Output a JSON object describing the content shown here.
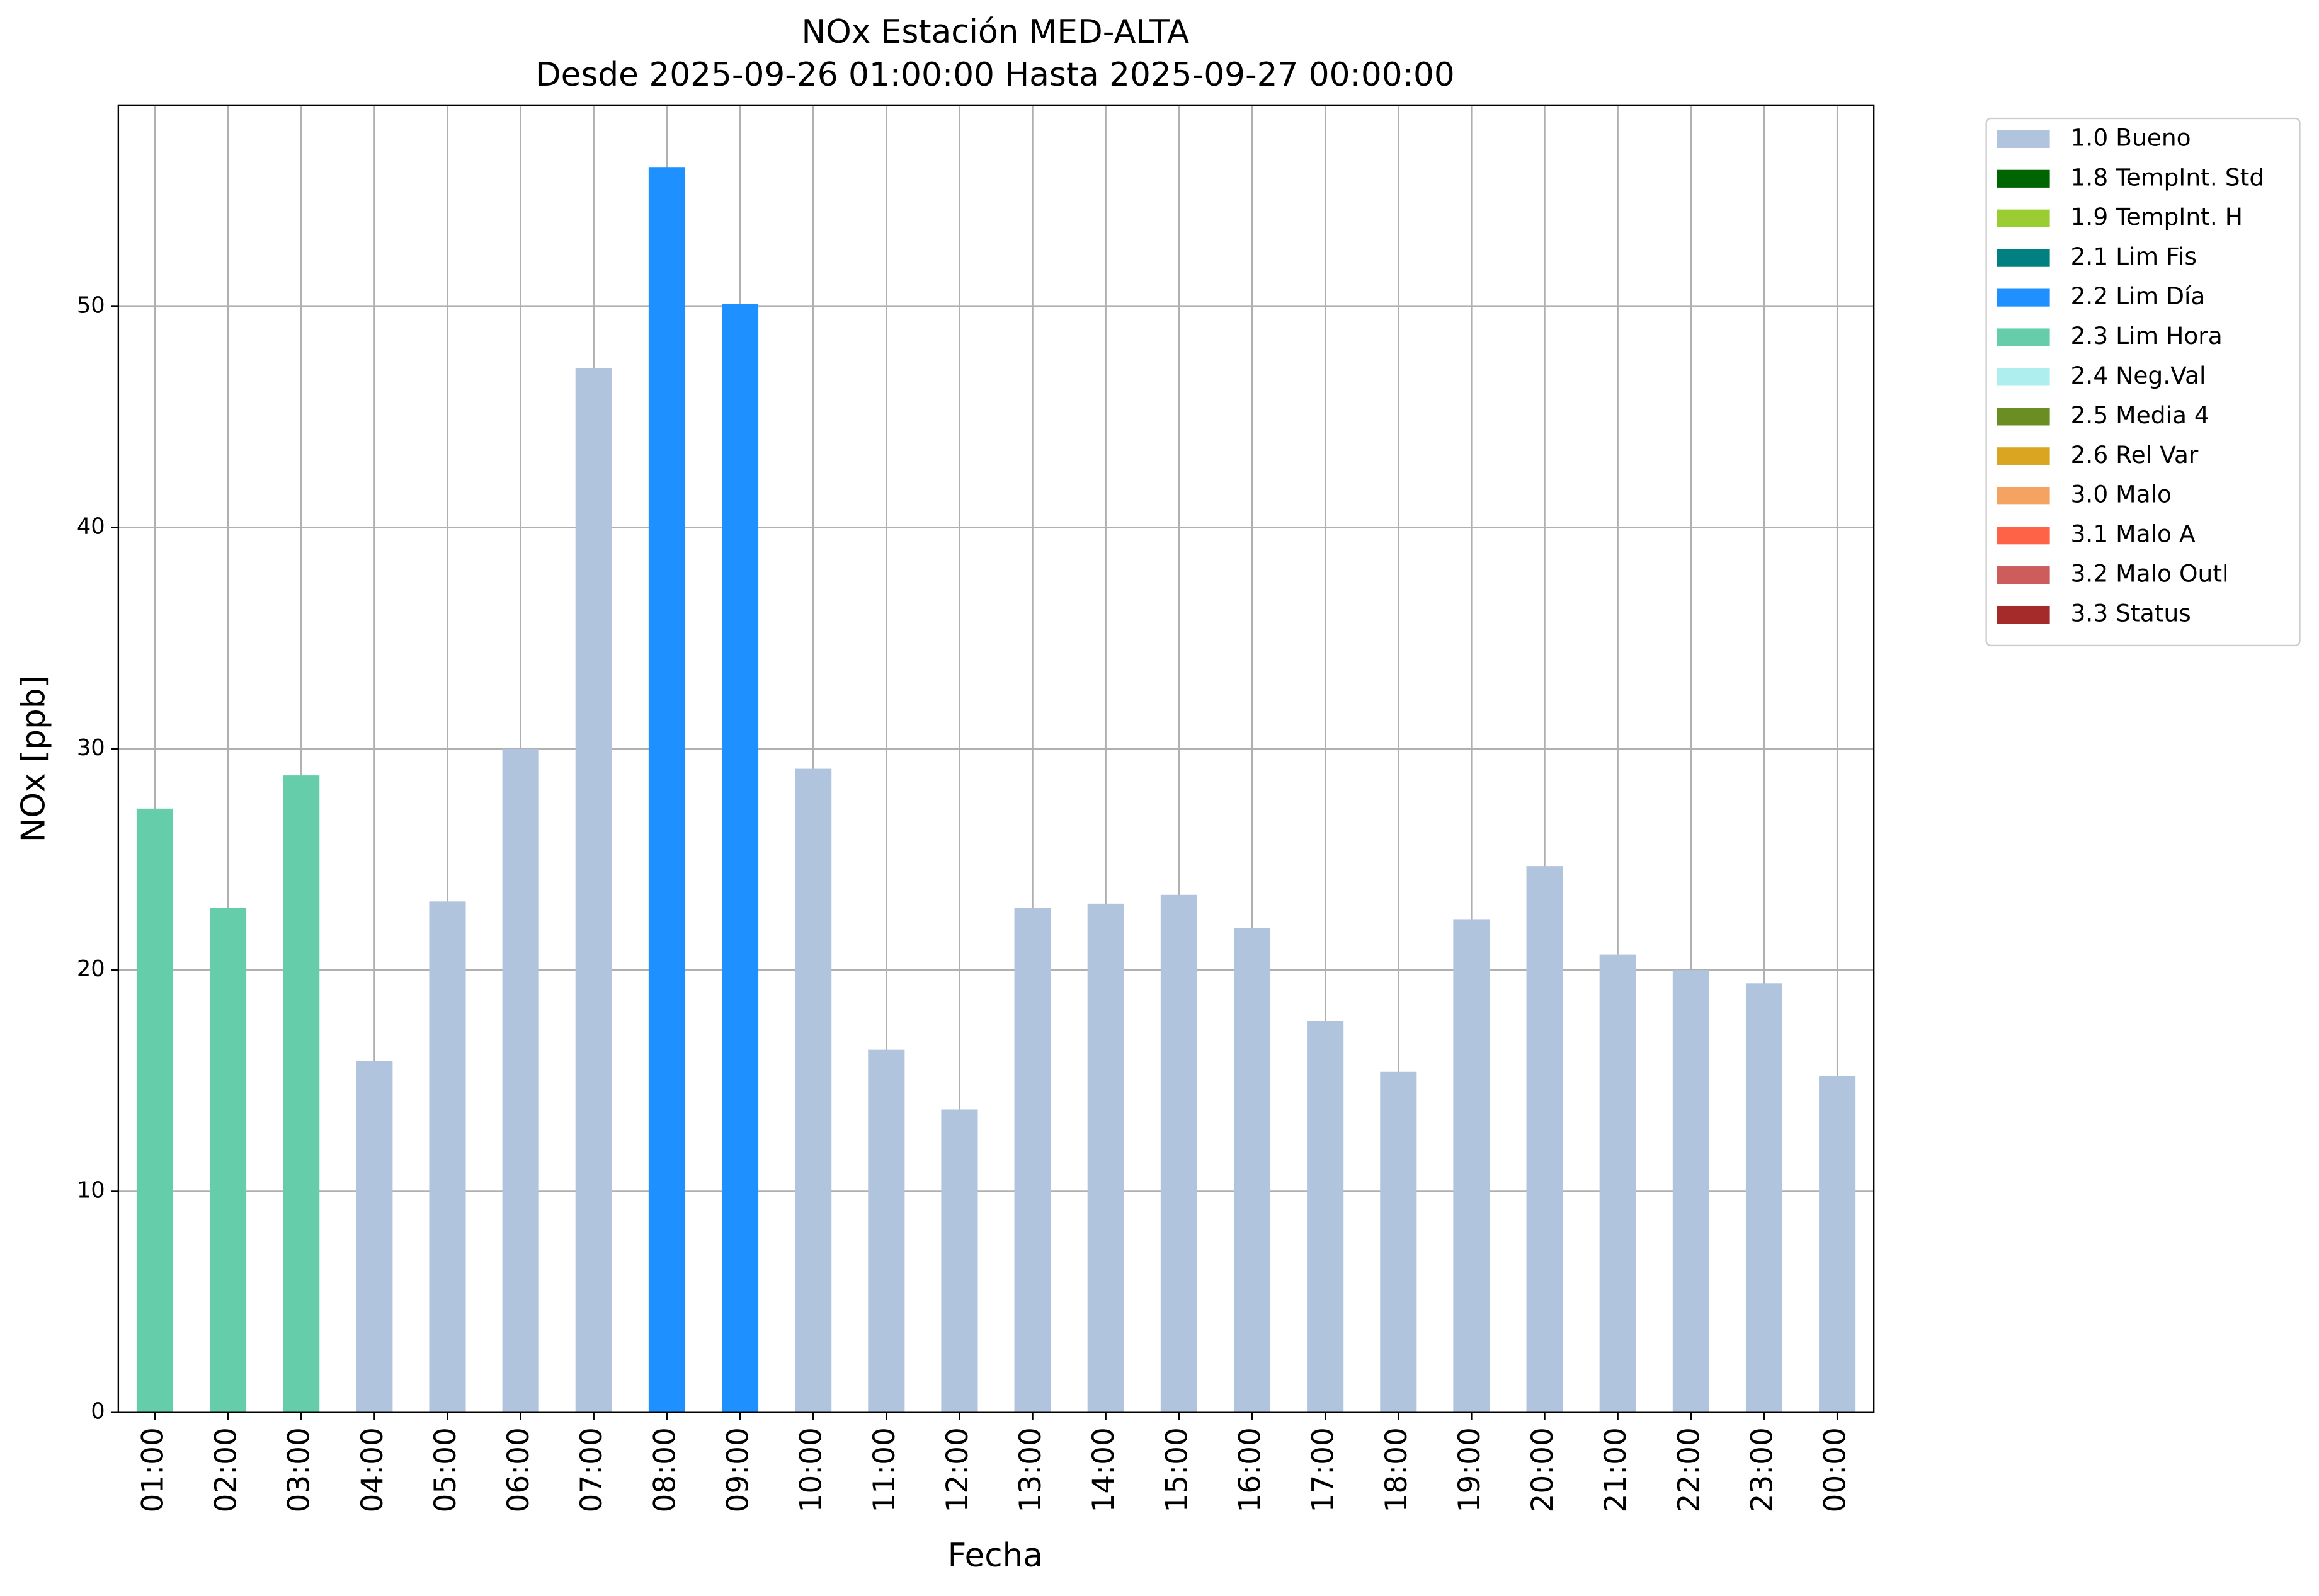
{
  "chart_data": {
    "type": "bar",
    "stacked": true,
    "title": "NOx Estación MED-ALTA",
    "subtitle": "Desde 2025-09-26 01:00:00 Hasta 2025-09-27 00:00:00",
    "x_label": "Fecha",
    "y_label": "NOx [ppb]",
    "categories": [
      "01:00",
      "02:00",
      "03:00",
      "04:00",
      "05:00",
      "06:00",
      "07:00",
      "08:00",
      "09:00",
      "10:00",
      "11:00",
      "12:00",
      "13:00",
      "14:00",
      "15:00",
      "16:00",
      "17:00",
      "18:00",
      "19:00",
      "20:00",
      "21:00",
      "22:00",
      "23:00",
      "00:00"
    ],
    "series": [
      {
        "name": "1.0 Bueno",
        "color": "#b0c4de",
        "values": [
          null,
          null,
          null,
          15.9,
          23.1,
          30.0,
          47.2,
          null,
          null,
          29.1,
          16.4,
          13.7,
          22.8,
          23.0,
          23.4,
          21.9,
          17.7,
          15.4,
          22.3,
          24.7,
          20.7,
          20.0,
          19.4,
          15.2
        ]
      },
      {
        "name": "1.8 TempInt. Std",
        "color": "#006400",
        "values": [
          null,
          null,
          null,
          null,
          null,
          null,
          null,
          null,
          null,
          null,
          null,
          null,
          null,
          null,
          null,
          null,
          null,
          null,
          null,
          null,
          null,
          null,
          null,
          null
        ]
      },
      {
        "name": "1.9 TempInt. H",
        "color": "#9acd32",
        "values": [
          null,
          null,
          null,
          null,
          null,
          null,
          null,
          null,
          null,
          null,
          null,
          null,
          null,
          null,
          null,
          null,
          null,
          null,
          null,
          null,
          null,
          null,
          null,
          null
        ]
      },
      {
        "name": "2.1 Lim Fis",
        "color": "#008080",
        "values": [
          null,
          null,
          null,
          null,
          null,
          null,
          null,
          null,
          null,
          null,
          null,
          null,
          null,
          null,
          null,
          null,
          null,
          null,
          null,
          null,
          null,
          null,
          null,
          null
        ]
      },
      {
        "name": "2.2 Lim Día",
        "color": "#1e90ff",
        "values": [
          null,
          null,
          null,
          null,
          null,
          null,
          null,
          56.3,
          50.1,
          null,
          null,
          null,
          null,
          null,
          null,
          null,
          null,
          null,
          null,
          null,
          null,
          null,
          null,
          null
        ]
      },
      {
        "name": "2.3 Lim Hora",
        "color": "#66cdaa",
        "values": [
          27.3,
          22.8,
          28.8,
          null,
          null,
          null,
          null,
          null,
          null,
          null,
          null,
          null,
          null,
          null,
          null,
          null,
          null,
          null,
          null,
          null,
          null,
          null,
          null,
          null
        ]
      },
      {
        "name": "2.4 Neg.Val",
        "color": "#afeeee",
        "values": [
          null,
          null,
          null,
          null,
          null,
          null,
          null,
          null,
          null,
          null,
          null,
          null,
          null,
          null,
          null,
          null,
          null,
          null,
          null,
          null,
          null,
          null,
          null,
          null
        ]
      },
      {
        "name": "2.5 Media 4",
        "color": "#6b8e23",
        "values": [
          null,
          null,
          null,
          null,
          null,
          null,
          null,
          null,
          null,
          null,
          null,
          null,
          null,
          null,
          null,
          null,
          null,
          null,
          null,
          null,
          null,
          null,
          null,
          null
        ]
      },
      {
        "name": "2.6 Rel Var",
        "color": "#daa520",
        "values": [
          null,
          null,
          null,
          null,
          null,
          null,
          null,
          null,
          null,
          null,
          null,
          null,
          null,
          null,
          null,
          null,
          null,
          null,
          null,
          null,
          null,
          null,
          null,
          null
        ]
      },
      {
        "name": "3.0 Malo",
        "color": "#f4a460",
        "values": [
          null,
          null,
          null,
          null,
          null,
          null,
          null,
          null,
          null,
          null,
          null,
          null,
          null,
          null,
          null,
          null,
          null,
          null,
          null,
          null,
          null,
          null,
          null,
          null
        ]
      },
      {
        "name": "3.1 Malo A",
        "color": "#ff6347",
        "values": [
          null,
          null,
          null,
          null,
          null,
          null,
          null,
          null,
          null,
          null,
          null,
          null,
          null,
          null,
          null,
          null,
          null,
          null,
          null,
          null,
          null,
          null,
          null,
          null
        ]
      },
      {
        "name": "3.2 Malo Outl",
        "color": "#cd5c5c",
        "values": [
          null,
          null,
          null,
          null,
          null,
          null,
          null,
          null,
          null,
          null,
          null,
          null,
          null,
          null,
          null,
          null,
          null,
          null,
          null,
          null,
          null,
          null,
          null,
          null
        ]
      },
      {
        "name": "3.3 Status",
        "color": "#a52a2a",
        "values": [
          null,
          null,
          null,
          null,
          null,
          null,
          null,
          null,
          null,
          null,
          null,
          null,
          null,
          null,
          null,
          null,
          null,
          null,
          null,
          null,
          null,
          null,
          null,
          null
        ]
      }
    ],
    "ylim": [
      0,
      59.1
    ],
    "yticks": [
      0,
      10,
      20,
      30,
      40,
      50
    ],
    "grid": true,
    "legend": "outside upper right"
  }
}
